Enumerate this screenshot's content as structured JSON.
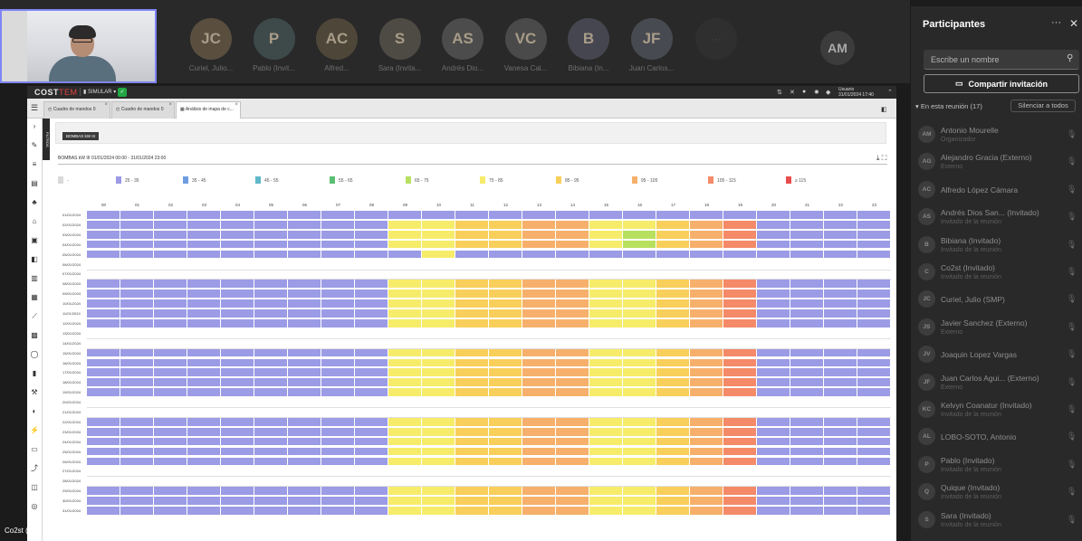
{
  "call": {
    "participants_strip": [
      {
        "initials": "JC",
        "name": "Curiel, Julio...",
        "color": "#5a4f3f"
      },
      {
        "initials": "P",
        "name": "Pablo (Invit...",
        "color": "#3e4a4a"
      },
      {
        "initials": "AC",
        "name": "Alfred...",
        "color": "#4e4739"
      },
      {
        "initials": "S",
        "name": "Sara (Invita...",
        "color": "#4e4b44"
      },
      {
        "initials": "AS",
        "name": "Andrés Dio...",
        "color": "#4c4c4c"
      },
      {
        "initials": "VC",
        "name": "Vanesa Cal...",
        "color": "#4a4a4a"
      },
      {
        "initials": "B",
        "name": "Bibiana (In...",
        "color": "#464650"
      },
      {
        "initials": "JF",
        "name": "Juan Carlos...",
        "color": "#484a52"
      }
    ],
    "overflow_label": "",
    "self_initials": "AM",
    "presenter_label": "Co2st (",
    "accent": "#7f85f5"
  },
  "app": {
    "logo_main": "COST",
    "logo_accent": "TEM",
    "mode": "SIMULAR",
    "user_label": "Usuario",
    "user_date": "31/01/2024 17:40",
    "tabs": [
      {
        "label": "Cuadro de mandos",
        "badge": "0"
      },
      {
        "label": "Cuadro de mandos",
        "badge": "0"
      },
      {
        "label": "Análisis de mapa de c..."
      }
    ],
    "filter_chip": "BOMBAS kW III",
    "filter_strip_label": "FILTROS",
    "report_title": "BOMBAS kW III 01/01/2024 00:00 - 31/01/2024 23:00"
  },
  "legend": [
    {
      "label": "-",
      "color": "#d9d9d9"
    },
    {
      "label": "25 - 35",
      "color": "#9b9be6"
    },
    {
      "label": "35 - 45",
      "color": "#6f9ee0"
    },
    {
      "label": "45 - 55",
      "color": "#61b8c9"
    },
    {
      "label": "55 - 65",
      "color": "#5bbf73"
    },
    {
      "label": "65 - 75",
      "color": "#b8e05f"
    },
    {
      "label": "75 - 85",
      "color": "#f6ec6a"
    },
    {
      "label": "85 - 95",
      "color": "#f8cf5a"
    },
    {
      "label": "95 - 105",
      "color": "#f6b06b"
    },
    {
      "label": "105 - 115",
      "color": "#f48a67"
    },
    {
      "label": "≥ 115",
      "color": "#e84d4d"
    }
  ],
  "heatmap": {
    "hours": [
      "00",
      "01",
      "02",
      "03",
      "04",
      "05",
      "06",
      "07",
      "08",
      "09",
      "10",
      "11",
      "12",
      "13",
      "14",
      "15",
      "16",
      "17",
      "18",
      "19",
      "20",
      "21",
      "22",
      "23"
    ],
    "dates": [
      "01/01/2024",
      "02/01/2024",
      "03/01/2024",
      "04/01/2024",
      "05/01/2024",
      "06/01/2024",
      "07/01/2024",
      "08/01/2024",
      "09/01/2024",
      "10/01/2024",
      "11/01/2024",
      "12/01/2024",
      "13/01/2024",
      "14/01/2024",
      "15/01/2024",
      "16/01/2024",
      "17/01/2024",
      "18/01/2024",
      "19/01/2024",
      "20/01/2024",
      "21/01/2024",
      "22/01/2024",
      "23/01/2024",
      "24/01/2024",
      "25/01/2024",
      "26/01/2024",
      "27/01/2024",
      "28/01/2024",
      "29/01/2024",
      "30/01/2024",
      "31/01/2024"
    ],
    "weekend_rows": [
      5,
      6,
      12,
      13,
      19,
      20,
      26,
      27
    ],
    "cells": [
      "1111111111111111111111111111111111111111111111",
      "11111111166778866789111",
      "11111111166778865789111",
      "11111111166778865789111",
      "11111111116111111111111",
      "",
      "",
      "11111111166778866789111",
      "11111111166778866789111",
      "11111111166778866789111",
      "11111111166778866789111",
      "11111111166778866789111",
      "",
      "",
      "11111111166778866789111",
      "11111111166778866789111",
      "11111111166778866789111",
      "11111111166778866789111",
      "11111111166778866789111",
      "",
      "",
      "11111111166778866789111",
      "11111111166778866789111",
      "11111111166778866789111",
      "11111111166778866789111",
      "11111111166778866789111",
      "",
      "",
      "11111111166778866789111",
      "11111111166778866789111",
      "11111111166778866789111"
    ]
  },
  "panel": {
    "title": "Participantes",
    "search_placeholder": "Escribe un nombre",
    "share_label": "Compartir invitación",
    "in_meeting_label": "En esta reunión (17)",
    "mute_all_label": "Silenciar a todos",
    "people": [
      {
        "initials": "AM",
        "name": "Antonio Mourelle",
        "sub": "Organizador"
      },
      {
        "initials": "AG",
        "name": "Alejandro Gracia (Externo)",
        "sub": "Externo"
      },
      {
        "initials": "AC",
        "name": "Alfredo López Cámara",
        "sub": ""
      },
      {
        "initials": "AS",
        "name": "Andrés Dios San... (Invitado)",
        "sub": "Invitado de la reunión"
      },
      {
        "initials": "B",
        "name": "Bibiana (Invitado)",
        "sub": "Invitado de la reunión"
      },
      {
        "initials": "C",
        "name": "Co2st (Invitado)",
        "sub": "Invitado de la reunión"
      },
      {
        "initials": "JC",
        "name": "Curiel, Julio (SMP)",
        "sub": ""
      },
      {
        "initials": "JS",
        "name": "Javier Sanchez (Externo)",
        "sub": "Externo"
      },
      {
        "initials": "JV",
        "name": "Joaquin Lopez Vargas",
        "sub": ""
      },
      {
        "initials": "JF",
        "name": "Juan Carlos Agui... (Externo)",
        "sub": "Externo"
      },
      {
        "initials": "KC",
        "name": "Kelvyn Coanatur (Invitado)",
        "sub": "Invitado de la reunión"
      },
      {
        "initials": "AL",
        "name": "LOBO-SOTO, Antonio",
        "sub": ""
      },
      {
        "initials": "P",
        "name": "Pablo (Invitado)",
        "sub": "Invitado de la reunión"
      },
      {
        "initials": "Q",
        "name": "Quique (Invitado)",
        "sub": "Invitado de la reunión"
      },
      {
        "initials": "S",
        "name": "Sara (Invitado)",
        "sub": "Invitado de la reunión"
      }
    ]
  }
}
